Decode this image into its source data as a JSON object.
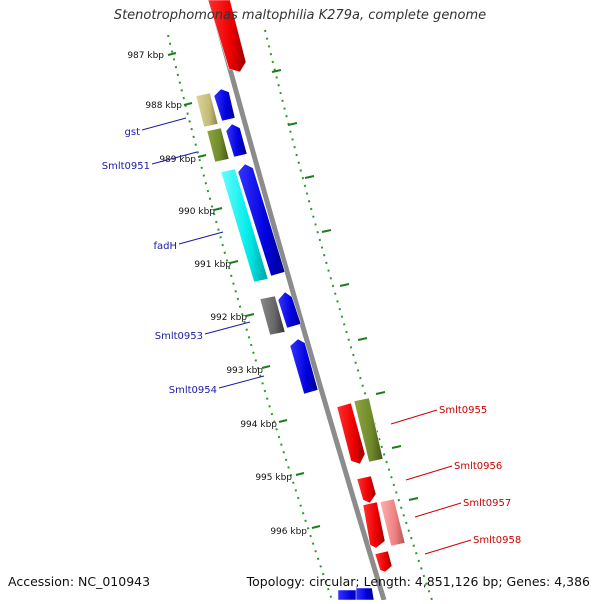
{
  "title": "Stenotrophomonas maltophilia K279a, complete genome",
  "footer": {
    "accession": "Accession: NC_010943",
    "summary": "Topology: circular; Length: 4,851,126 bp; Genes: 4,386"
  },
  "colors": {
    "backbone": "#8c8c8c",
    "tick": "#1e7d1e",
    "reverse_label": "#1a1aa8",
    "forward_label": "#cc0000"
  },
  "scale_labels": [
    "987 kbp",
    "988 kbp",
    "989 kbp",
    "990 kbp",
    "991 kbp",
    "992 kbp",
    "993 kbp",
    "994 kbp",
    "995 kbp",
    "996 kbp"
  ],
  "gene_labels_reverse": [
    "gst",
    "Smlt0951",
    "fadH",
    "Smlt0953",
    "Smlt0954"
  ],
  "gene_labels_forward": [
    "Smlt0955",
    "Smlt0956",
    "Smlt0957",
    "Smlt0958"
  ]
}
